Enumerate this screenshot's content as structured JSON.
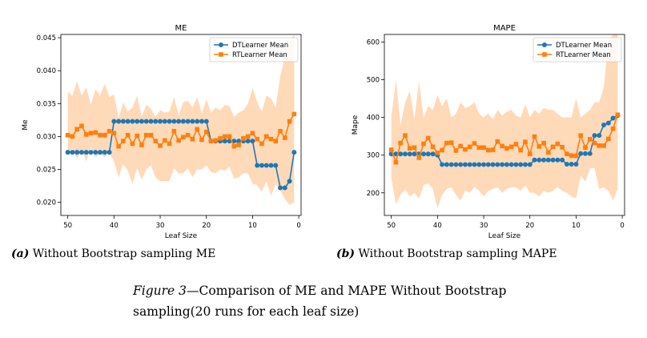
{
  "chart_data": [
    {
      "type": "line",
      "title": "ME",
      "xlabel": "Leaf Size",
      "ylabel": "Me",
      "xlim": [
        51.5,
        -0.5
      ],
      "ylim": [
        0.018,
        0.0455
      ],
      "xticks": [
        50,
        40,
        30,
        20,
        10,
        0
      ],
      "yticks": [
        0.02,
        0.025,
        0.03,
        0.035,
        0.04,
        0.045
      ],
      "ytick_labels": [
        "0.020",
        "0.025",
        "0.030",
        "0.035",
        "0.040",
        "0.045"
      ],
      "grid": false,
      "legend_position": "top-right",
      "x": [
        50,
        49,
        48,
        47,
        46,
        45,
        44,
        43,
        42,
        41,
        40,
        39,
        38,
        37,
        36,
        35,
        34,
        33,
        32,
        31,
        30,
        29,
        28,
        27,
        26,
        25,
        24,
        23,
        22,
        21,
        20,
        19,
        18,
        17,
        16,
        15,
        14,
        13,
        12,
        11,
        10,
        9,
        8,
        7,
        6,
        5,
        4,
        3,
        2,
        1
      ],
      "series": [
        {
          "name": "DTLearner Mean",
          "color": "#1f77b4",
          "marker": "circle",
          "values": [
            0.0276,
            0.0276,
            0.0276,
            0.0276,
            0.0276,
            0.0276,
            0.0276,
            0.0276,
            0.0276,
            0.0276,
            0.0323,
            0.0323,
            0.0323,
            0.0323,
            0.0323,
            0.0323,
            0.0323,
            0.0323,
            0.0323,
            0.0323,
            0.0323,
            0.0323,
            0.0323,
            0.0323,
            0.0323,
            0.0323,
            0.0323,
            0.0323,
            0.0323,
            0.0323,
            0.0323,
            0.0293,
            0.0293,
            0.0293,
            0.0293,
            0.0293,
            0.0293,
            0.0293,
            0.0293,
            0.0293,
            0.0293,
            0.0256,
            0.0256,
            0.0256,
            0.0256,
            0.0256,
            0.0222,
            0.0222,
            0.0232,
            0.0276
          ]
        },
        {
          "name": "RTLearner Mean",
          "color": "#ff7f0e",
          "marker": "square",
          "values": [
            0.0302,
            0.03,
            0.0311,
            0.0316,
            0.0303,
            0.0305,
            0.0306,
            0.0302,
            0.0302,
            0.0308,
            0.0305,
            0.0285,
            0.0293,
            0.0302,
            0.0289,
            0.0301,
            0.0287,
            0.0302,
            0.0302,
            0.0293,
            0.0286,
            0.0294,
            0.0289,
            0.0308,
            0.0294,
            0.0299,
            0.0302,
            0.0296,
            0.0311,
            0.0295,
            0.0307,
            0.0293,
            0.0294,
            0.0297,
            0.03,
            0.03,
            0.0285,
            0.0287,
            0.0297,
            0.03,
            0.0305,
            0.0296,
            0.0289,
            0.03,
            0.0296,
            0.0293,
            0.0308,
            0.0298,
            0.0323,
            0.0334
          ]
        }
      ],
      "band": {
        "color": "#ffdab9",
        "upper": [
          0.0368,
          0.0362,
          0.0384,
          0.0362,
          0.0375,
          0.0348,
          0.0372,
          0.0362,
          0.038,
          0.036,
          0.0364,
          0.0328,
          0.0352,
          0.0338,
          0.0344,
          0.0362,
          0.033,
          0.0348,
          0.0342,
          0.033,
          0.034,
          0.0336,
          0.0338,
          0.036,
          0.0332,
          0.0352,
          0.0354,
          0.0344,
          0.036,
          0.0335,
          0.0356,
          0.0336,
          0.0344,
          0.034,
          0.0348,
          0.0346,
          0.033,
          0.0336,
          0.034,
          0.035,
          0.0374,
          0.0352,
          0.0338,
          0.0362,
          0.0358,
          0.0344,
          0.0392,
          0.042,
          0.0445,
          0.0455
        ],
        "lower": [
          0.0272,
          0.0282,
          0.0266,
          0.028,
          0.0262,
          0.0284,
          0.0268,
          0.0274,
          0.0268,
          0.0276,
          0.0262,
          0.0238,
          0.0258,
          0.0248,
          0.0228,
          0.0252,
          0.0234,
          0.025,
          0.0256,
          0.0238,
          0.0232,
          0.0232,
          0.0232,
          0.0252,
          0.0244,
          0.0244,
          0.0252,
          0.0238,
          0.025,
          0.025,
          0.0256,
          0.0246,
          0.0244,
          0.025,
          0.0248,
          0.0254,
          0.0236,
          0.0238,
          0.0244,
          0.0244,
          0.0228,
          0.0226,
          0.0216,
          0.0232,
          0.021,
          0.0228,
          0.0218,
          0.0205,
          0.0196,
          0.02
        ]
      }
    },
    {
      "type": "line",
      "title": "MAPE",
      "xlabel": "Leaf Size",
      "ylabel": "Mape",
      "xlim": [
        51.5,
        -0.5
      ],
      "ylim": [
        140,
        620
      ],
      "xticks": [
        50,
        40,
        30,
        20,
        10,
        0
      ],
      "yticks": [
        200,
        300,
        400,
        500,
        600
      ],
      "ytick_labels": [
        "200",
        "300",
        "400",
        "500",
        "600"
      ],
      "grid": false,
      "legend_position": "top-right",
      "x": [
        50,
        49,
        48,
        47,
        46,
        45,
        44,
        43,
        42,
        41,
        40,
        39,
        38,
        37,
        36,
        35,
        34,
        33,
        32,
        31,
        30,
        29,
        28,
        27,
        26,
        25,
        24,
        23,
        22,
        21,
        20,
        19,
        18,
        17,
        16,
        15,
        14,
        13,
        12,
        11,
        10,
        9,
        8,
        7,
        6,
        5,
        4,
        3,
        2,
        1
      ],
      "series": [
        {
          "name": "DTLearner Mean",
          "color": "#1f77b4",
          "marker": "circle",
          "values": [
            303,
            303,
            303,
            303,
            303,
            303,
            303,
            303,
            303,
            303,
            300,
            275,
            275,
            275,
            275,
            275,
            275,
            275,
            275,
            275,
            275,
            275,
            275,
            275,
            275,
            275,
            275,
            275,
            275,
            275,
            275,
            287,
            287,
            287,
            287,
            287,
            287,
            287,
            276,
            276,
            276,
            304,
            304,
            304,
            352,
            352,
            380,
            385,
            398,
            405
          ]
        },
        {
          "name": "RTLearner Mean",
          "color": "#ff7f0e",
          "marker": "square",
          "values": [
            314,
            281,
            332,
            352,
            318,
            320,
            293,
            330,
            345,
            322,
            306,
            313,
            332,
            333,
            312,
            324,
            315,
            322,
            331,
            320,
            320,
            313,
            314,
            336,
            324,
            318,
            322,
            329,
            313,
            335,
            303,
            349,
            323,
            332,
            307,
            322,
            330,
            321,
            303,
            299,
            298,
            352,
            320,
            342,
            332,
            325,
            325,
            343,
            370,
            407
          ]
        }
      ],
      "band": {
        "color": "#ffdab9",
        "upper": [
          400,
          500,
          380,
          440,
          470,
          395,
          495,
          400,
          430,
          420,
          460,
          430,
          450,
          400,
          410,
          440,
          425,
          430,
          440,
          410,
          400,
          410,
          395,
          420,
          405,
          415,
          420,
          405,
          400,
          435,
          400,
          420,
          410,
          425,
          420,
          420,
          410,
          400,
          400,
          400,
          450,
          400,
          410,
          420,
          440,
          440,
          480,
          600,
          620,
          620
        ],
        "lower": [
          240,
          170,
          195,
          210,
          190,
          200,
          185,
          220,
          225,
          210,
          160,
          195,
          210,
          215,
          195,
          180,
          205,
          200,
          215,
          205,
          190,
          205,
          210,
          215,
          200,
          210,
          215,
          215,
          205,
          220,
          200,
          200,
          190,
          205,
          200,
          205,
          215,
          205,
          200,
          190,
          185,
          245,
          230,
          265,
          265,
          210,
          215,
          205,
          180,
          210
        ]
      }
    }
  ],
  "subcaptions": {
    "a_label": "(a)",
    "a_text": " Without Bootstrap sampling ME",
    "b_label": "(b)",
    "b_text": " Without Bootstrap sampling MAPE"
  },
  "caption": {
    "figure": "Figure 3",
    "text": "—Comparison of ME and MAPE Without Bootstrap sampling(20 runs for each leaf size)"
  }
}
